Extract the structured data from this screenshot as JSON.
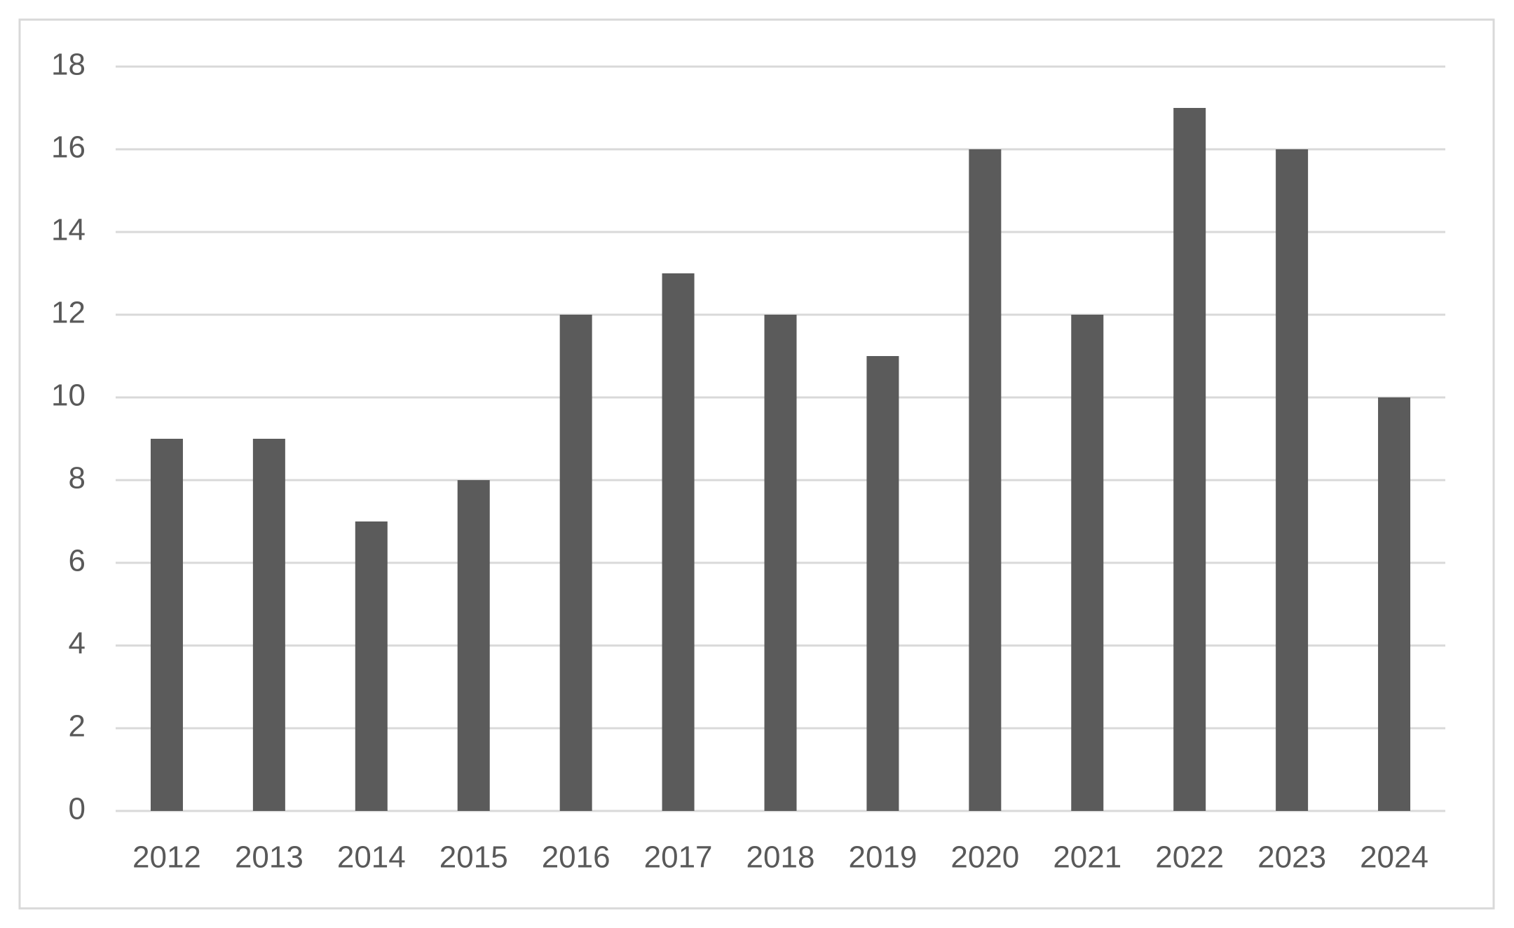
{
  "chart_data": {
    "type": "bar",
    "categories": [
      "2012",
      "2013",
      "2014",
      "2015",
      "2016",
      "2017",
      "2018",
      "2019",
      "2020",
      "2021",
      "2022",
      "2023",
      "2024"
    ],
    "values": [
      9,
      9,
      7,
      8,
      12,
      13,
      12,
      11,
      16,
      12,
      17,
      16,
      10
    ],
    "color": "#5b5b5b",
    "ylim": [
      0,
      18
    ],
    "yticks": [
      0,
      2,
      4,
      6,
      8,
      10,
      12,
      14,
      16,
      18
    ],
    "grid": true
  }
}
